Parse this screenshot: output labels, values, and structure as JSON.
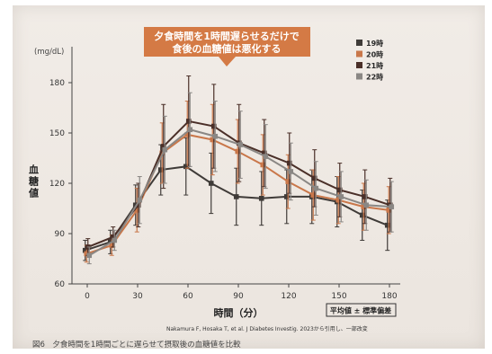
{
  "chart_data": {
    "type": "line",
    "title": "",
    "callout": [
      "夕食時間を1時間遅らせるだけで",
      "食後の血糖値は悪化する"
    ],
    "ylabel_unit": "(mg/dL)",
    "ylabel": "血糖値",
    "xlabel": "時間（分）",
    "x": [
      0,
      15,
      30,
      45,
      60,
      75,
      90,
      105,
      120,
      135,
      150,
      165,
      180
    ],
    "xticks": [
      "0",
      "30",
      "60",
      "90",
      "120",
      "150",
      "180"
    ],
    "xtick_values": [
      0,
      30,
      60,
      90,
      120,
      150,
      180
    ],
    "yticks": [
      "60",
      "90",
      "120",
      "150",
      "180"
    ],
    "ytick_values": [
      60,
      90,
      120,
      150,
      180
    ],
    "xlim": [
      0,
      180
    ],
    "ylim": [
      60,
      180
    ],
    "legend_position": "top-right",
    "grid": false,
    "colors": {
      "series_19": "#3f3b38",
      "series_20": "#c9774a",
      "series_21": "#4a2f28",
      "series_22": "#8a8784",
      "callout_bg": "#d47a45"
    },
    "series": [
      {
        "name": "19時",
        "color": "#3f3b38",
        "values": [
          80,
          85,
          107,
          128,
          130,
          120,
          112,
          111,
          112,
          112,
          109,
          101,
          95
        ],
        "err": [
          6,
          7,
          12,
          15,
          17,
          18,
          17,
          16,
          16,
          16,
          15,
          15,
          15
        ]
      },
      {
        "name": "20時",
        "color": "#c9774a",
        "values": [
          78,
          83,
          104,
          138,
          149,
          146,
          139,
          131,
          121,
          113,
          110,
          106,
          104
        ],
        "err": [
          5,
          6,
          13,
          18,
          20,
          21,
          19,
          18,
          16,
          15,
          14,
          14,
          14
        ]
      },
      {
        "name": "21時",
        "color": "#4a2f28",
        "values": [
          82,
          88,
          107,
          142,
          157,
          154,
          144,
          138,
          132,
          123,
          116,
          112,
          107
        ],
        "err": [
          5,
          6,
          13,
          25,
          27,
          25,
          23,
          20,
          18,
          17,
          16,
          16,
          16
        ]
      },
      {
        "name": "22時",
        "color": "#8a8784",
        "values": [
          77,
          86,
          110,
          140,
          152,
          148,
          143,
          136,
          127,
          117,
          112,
          107,
          106
        ],
        "err": [
          5,
          6,
          14,
          20,
          22,
          21,
          20,
          19,
          17,
          16,
          15,
          15,
          15
        ]
      }
    ],
    "badge": "平均値 ± 標準偏差",
    "citation": "Nakamura F, Hosaka T, et al. J Diabetes Investig. 2023から引用し、一部改変",
    "caption": "図6　夕食時間を1時間ごとに遅らせて摂取後の血糖値を比較"
  }
}
